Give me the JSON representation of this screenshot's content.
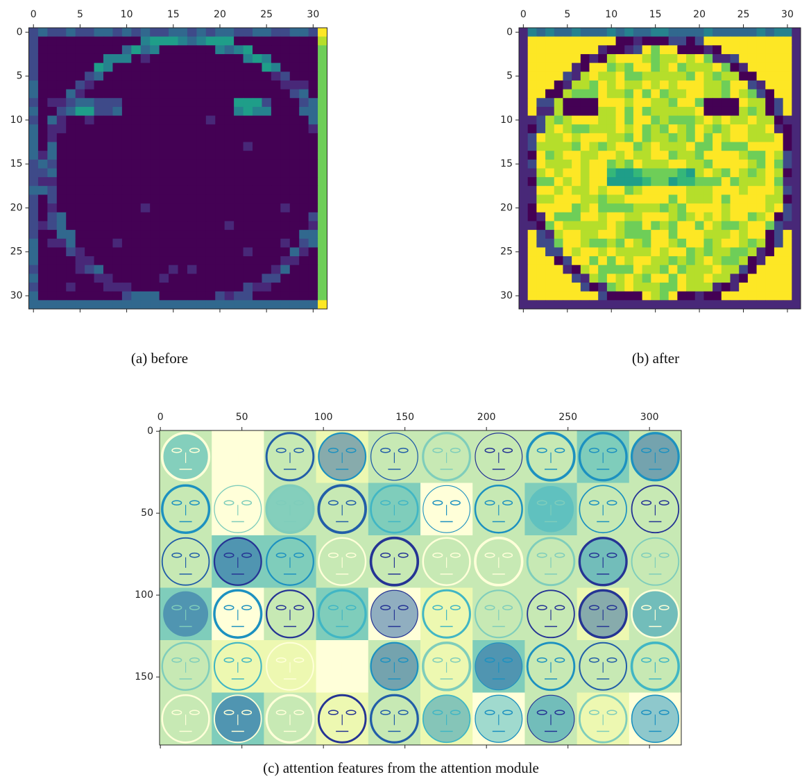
{
  "chart_data": [
    {
      "type": "image",
      "colormap": "viridis",
      "caption": "(a) before",
      "xlim": [
        -0.5,
        31.5
      ],
      "ylim": [
        31.5,
        -0.5
      ],
      "xticks": [
        0,
        5,
        10,
        15,
        20,
        25,
        30
      ],
      "yticks": [
        0,
        5,
        10,
        15,
        20,
        25,
        30
      ]
    },
    {
      "type": "image",
      "colormap": "viridis",
      "caption": "(b) after",
      "xlim": [
        -0.5,
        31.5
      ],
      "ylim": [
        31.5,
        -0.5
      ],
      "xticks": [
        0,
        5,
        10,
        15,
        20,
        25,
        30
      ],
      "yticks": [
        0,
        5,
        10,
        15,
        20,
        25,
        30
      ]
    },
    {
      "type": "image",
      "colormap": "YlGnBu",
      "caption": "(c) attention features from the attention module",
      "xlim": [
        -0.5,
        319.5
      ],
      "ylim": [
        191.5,
        -0.5
      ],
      "xticks": [
        0,
        50,
        100,
        150,
        200,
        250,
        300
      ],
      "yticks": [
        0,
        50,
        100,
        150
      ]
    }
  ]
}
